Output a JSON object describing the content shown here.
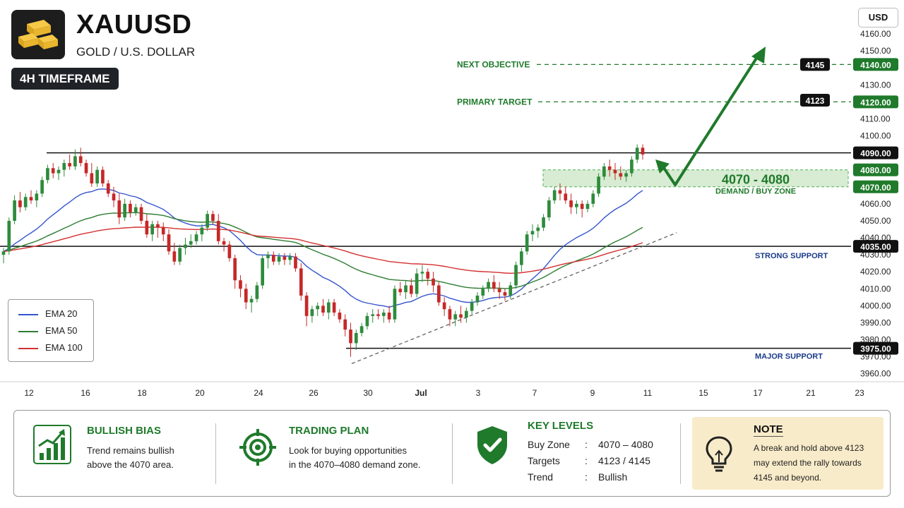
{
  "header": {
    "symbol": "XAUUSD",
    "subtitle": "GOLD / U.S. DOLLAR",
    "timeframe": "4H TIMEFRAME",
    "currency_button": "USD"
  },
  "colors": {
    "bull_candle": "#2e8b3c",
    "bear_candle": "#c62828",
    "ema20": "#3355cc",
    "ema50": "#2e7d32",
    "ema100": "#d32f2f",
    "accent_green": "#1f7a2b",
    "dark_label": "#111111"
  },
  "legend": [
    {
      "label": "EMA 20",
      "color": "#3355cc"
    },
    {
      "label": "EMA 50",
      "color": "#2e7d32"
    },
    {
      "label": "EMA 100",
      "color": "#d32f2f"
    }
  ],
  "chart_data": {
    "type": "candlestick",
    "ylim": [
      3955,
      4165
    ],
    "y_ticks": [
      "4160.00",
      "4150.00",
      "4140.00",
      "4130.00",
      "4120.00",
      "4110.00",
      "4100.00",
      "4090.00",
      "4080.00",
      "4070.00",
      "4060.00",
      "4050.00",
      "4040.00",
      "4035.00",
      "4030.00",
      "4020.00",
      "4010.00",
      "4000.00",
      "3990.00",
      "3980.00",
      "3975.00",
      "3970.00",
      "3960.00"
    ],
    "x_ticks": [
      "12",
      "16",
      "18",
      "20",
      "24",
      "26",
      "30",
      "Jul",
      "3",
      "7",
      "9",
      "11",
      "15",
      "17",
      "21",
      "23"
    ],
    "candles": [
      {
        "o": 4030,
        "h": 4034,
        "l": 4025,
        "c": 4032
      },
      {
        "o": 4032,
        "h": 4052,
        "l": 4030,
        "c": 4050
      },
      {
        "o": 4050,
        "h": 4065,
        "l": 4048,
        "c": 4062
      },
      {
        "o": 4062,
        "h": 4067,
        "l": 4055,
        "c": 4058
      },
      {
        "o": 4058,
        "h": 4066,
        "l": 4056,
        "c": 4064
      },
      {
        "o": 4064,
        "h": 4068,
        "l": 4060,
        "c": 4062
      },
      {
        "o": 4062,
        "h": 4068,
        "l": 4058,
        "c": 4066
      },
      {
        "o": 4066,
        "h": 4076,
        "l": 4064,
        "c": 4074
      },
      {
        "o": 4074,
        "h": 4083,
        "l": 4072,
        "c": 4081
      },
      {
        "o": 4081,
        "h": 4084,
        "l": 4075,
        "c": 4078
      },
      {
        "o": 4078,
        "h": 4082,
        "l": 4074,
        "c": 4080
      },
      {
        "o": 4080,
        "h": 4086,
        "l": 4076,
        "c": 4084
      },
      {
        "o": 4084,
        "h": 4089,
        "l": 4080,
        "c": 4082
      },
      {
        "o": 4082,
        "h": 4092,
        "l": 4080,
        "c": 4088
      },
      {
        "o": 4088,
        "h": 4093,
        "l": 4082,
        "c": 4084
      },
      {
        "o": 4084,
        "h": 4086,
        "l": 4076,
        "c": 4078
      },
      {
        "o": 4078,
        "h": 4084,
        "l": 4070,
        "c": 4072
      },
      {
        "o": 4072,
        "h": 4082,
        "l": 4070,
        "c": 4080
      },
      {
        "o": 4080,
        "h": 4082,
        "l": 4070,
        "c": 4072
      },
      {
        "o": 4072,
        "h": 4074,
        "l": 4064,
        "c": 4066
      },
      {
        "o": 4066,
        "h": 4070,
        "l": 4058,
        "c": 4062
      },
      {
        "o": 4062,
        "h": 4066,
        "l": 4048,
        "c": 4052
      },
      {
        "o": 4052,
        "h": 4063,
        "l": 4050,
        "c": 4060
      },
      {
        "o": 4060,
        "h": 4062,
        "l": 4052,
        "c": 4055
      },
      {
        "o": 4055,
        "h": 4060,
        "l": 4053,
        "c": 4058
      },
      {
        "o": 4058,
        "h": 4060,
        "l": 4048,
        "c": 4050
      },
      {
        "o": 4050,
        "h": 4054,
        "l": 4040,
        "c": 4042
      },
      {
        "o": 4042,
        "h": 4050,
        "l": 4038,
        "c": 4048
      },
      {
        "o": 4048,
        "h": 4050,
        "l": 4040,
        "c": 4046
      },
      {
        "o": 4046,
        "h": 4049,
        "l": 4038,
        "c": 4042
      },
      {
        "o": 4042,
        "h": 4045,
        "l": 4030,
        "c": 4032
      },
      {
        "o": 4032,
        "h": 4037,
        "l": 4024,
        "c": 4026
      },
      {
        "o": 4026,
        "h": 4036,
        "l": 4024,
        "c": 4034
      },
      {
        "o": 4034,
        "h": 4040,
        "l": 4030,
        "c": 4036
      },
      {
        "o": 4036,
        "h": 4042,
        "l": 4034,
        "c": 4038
      },
      {
        "o": 4038,
        "h": 4044,
        "l": 4036,
        "c": 4042
      },
      {
        "o": 4042,
        "h": 4048,
        "l": 4038,
        "c": 4046
      },
      {
        "o": 4046,
        "h": 4056,
        "l": 4044,
        "c": 4054
      },
      {
        "o": 4054,
        "h": 4056,
        "l": 4048,
        "c": 4050
      },
      {
        "o": 4050,
        "h": 4054,
        "l": 4036,
        "c": 4038
      },
      {
        "o": 4038,
        "h": 4040,
        "l": 4032,
        "c": 4036
      },
      {
        "o": 4036,
        "h": 4038,
        "l": 4026,
        "c": 4028
      },
      {
        "o": 4028,
        "h": 4030,
        "l": 4010,
        "c": 4015
      },
      {
        "o": 4015,
        "h": 4018,
        "l": 4005,
        "c": 4010
      },
      {
        "o": 4010,
        "h": 4013,
        "l": 3998,
        "c": 4002
      },
      {
        "o": 4002,
        "h": 4006,
        "l": 3996,
        "c": 4004
      },
      {
        "o": 4004,
        "h": 4014,
        "l": 4002,
        "c": 4012
      },
      {
        "o": 4012,
        "h": 4030,
        "l": 4010,
        "c": 4028
      },
      {
        "o": 4028,
        "h": 4032,
        "l": 4022,
        "c": 4030
      },
      {
        "o": 4030,
        "h": 4032,
        "l": 4024,
        "c": 4026
      },
      {
        "o": 4026,
        "h": 4031,
        "l": 4024,
        "c": 4029
      },
      {
        "o": 4029,
        "h": 4031,
        "l": 4024,
        "c": 4027
      },
      {
        "o": 4027,
        "h": 4031,
        "l": 4024,
        "c": 4029
      },
      {
        "o": 4029,
        "h": 4031,
        "l": 4020,
        "c": 4022
      },
      {
        "o": 4022,
        "h": 4025,
        "l": 4003,
        "c": 4006
      },
      {
        "o": 4006,
        "h": 4008,
        "l": 3988,
        "c": 3994
      },
      {
        "o": 3994,
        "h": 4000,
        "l": 3990,
        "c": 3998
      },
      {
        "o": 3998,
        "h": 4002,
        "l": 3994,
        "c": 4000
      },
      {
        "o": 4000,
        "h": 4004,
        "l": 3994,
        "c": 3996
      },
      {
        "o": 3996,
        "h": 4004,
        "l": 3992,
        "c": 4002
      },
      {
        "o": 4002,
        "h": 4004,
        "l": 3994,
        "c": 3996
      },
      {
        "o": 3996,
        "h": 3998,
        "l": 3990,
        "c": 3992
      },
      {
        "o": 3992,
        "h": 3995,
        "l": 3982,
        "c": 3986
      },
      {
        "o": 3986,
        "h": 3990,
        "l": 3970,
        "c": 3978
      },
      {
        "o": 3978,
        "h": 3986,
        "l": 3974,
        "c": 3984
      },
      {
        "o": 3984,
        "h": 3990,
        "l": 3982,
        "c": 3988
      },
      {
        "o": 3988,
        "h": 3996,
        "l": 3986,
        "c": 3994
      },
      {
        "o": 3994,
        "h": 3998,
        "l": 3990,
        "c": 3995
      },
      {
        "o": 3995,
        "h": 3998,
        "l": 3992,
        "c": 3994
      },
      {
        "o": 3994,
        "h": 3998,
        "l": 3990,
        "c": 3996
      },
      {
        "o": 3996,
        "h": 4000,
        "l": 3990,
        "c": 3992
      },
      {
        "o": 3992,
        "h": 4012,
        "l": 3990,
        "c": 4010
      },
      {
        "o": 4010,
        "h": 4014,
        "l": 4006,
        "c": 4008
      },
      {
        "o": 4008,
        "h": 4015,
        "l": 4004,
        "c": 4012
      },
      {
        "o": 4012,
        "h": 4016,
        "l": 4005,
        "c": 4007
      },
      {
        "o": 4007,
        "h": 4022,
        "l": 4005,
        "c": 4019
      },
      {
        "o": 4019,
        "h": 4024,
        "l": 4014,
        "c": 4020
      },
      {
        "o": 4020,
        "h": 4022,
        "l": 4012,
        "c": 4016
      },
      {
        "o": 4016,
        "h": 4020,
        "l": 4008,
        "c": 4012
      },
      {
        "o": 4012,
        "h": 4014,
        "l": 4000,
        "c": 4002
      },
      {
        "o": 4002,
        "h": 4005,
        "l": 3994,
        "c": 3998
      },
      {
        "o": 3998,
        "h": 4000,
        "l": 3988,
        "c": 3992
      },
      {
        "o": 3992,
        "h": 3997,
        "l": 3988,
        "c": 3995
      },
      {
        "o": 3995,
        "h": 4000,
        "l": 3990,
        "c": 3993
      },
      {
        "o": 3993,
        "h": 3999,
        "l": 3990,
        "c": 3997
      },
      {
        "o": 3997,
        "h": 4004,
        "l": 3995,
        "c": 4002
      },
      {
        "o": 4002,
        "h": 4008,
        "l": 4000,
        "c": 4006
      },
      {
        "o": 4006,
        "h": 4012,
        "l": 4004,
        "c": 4010
      },
      {
        "o": 4010,
        "h": 4016,
        "l": 4008,
        "c": 4014
      },
      {
        "o": 4014,
        "h": 4018,
        "l": 4008,
        "c": 4010
      },
      {
        "o": 4010,
        "h": 4014,
        "l": 4004,
        "c": 4008
      },
      {
        "o": 4008,
        "h": 4010,
        "l": 4003,
        "c": 4006
      },
      {
        "o": 4006,
        "h": 4014,
        "l": 4004,
        "c": 4012
      },
      {
        "o": 4012,
        "h": 4026,
        "l": 4010,
        "c": 4024
      },
      {
        "o": 4024,
        "h": 4034,
        "l": 4020,
        "c": 4032
      },
      {
        "o": 4032,
        "h": 4044,
        "l": 4030,
        "c": 4042
      },
      {
        "o": 4042,
        "h": 4048,
        "l": 4038,
        "c": 4044
      },
      {
        "o": 4044,
        "h": 4048,
        "l": 4040,
        "c": 4046
      },
      {
        "o": 4046,
        "h": 4054,
        "l": 4044,
        "c": 4052
      },
      {
        "o": 4052,
        "h": 4064,
        "l": 4050,
        "c": 4062
      },
      {
        "o": 4062,
        "h": 4070,
        "l": 4060,
        "c": 4068
      },
      {
        "o": 4068,
        "h": 4072,
        "l": 4062,
        "c": 4066
      },
      {
        "o": 4066,
        "h": 4070,
        "l": 4060,
        "c": 4062
      },
      {
        "o": 4062,
        "h": 4066,
        "l": 4054,
        "c": 4058
      },
      {
        "o": 4058,
        "h": 4062,
        "l": 4054,
        "c": 4060
      },
      {
        "o": 4060,
        "h": 4062,
        "l": 4052,
        "c": 4057
      },
      {
        "o": 4057,
        "h": 4062,
        "l": 4055,
        "c": 4060
      },
      {
        "o": 4060,
        "h": 4068,
        "l": 4058,
        "c": 4066
      },
      {
        "o": 4066,
        "h": 4078,
        "l": 4064,
        "c": 4076
      },
      {
        "o": 4076,
        "h": 4084,
        "l": 4074,
        "c": 4082
      },
      {
        "o": 4082,
        "h": 4086,
        "l": 4076,
        "c": 4080
      },
      {
        "o": 4080,
        "h": 4084,
        "l": 4074,
        "c": 4078
      },
      {
        "o": 4078,
        "h": 4082,
        "l": 4074,
        "c": 4076
      },
      {
        "o": 4076,
        "h": 4080,
        "l": 4073,
        "c": 4078
      },
      {
        "o": 4078,
        "h": 4088,
        "l": 4076,
        "c": 4086
      },
      {
        "o": 4086,
        "h": 4095,
        "l": 4084,
        "c": 4093
      },
      {
        "o": 4093,
        "h": 4095,
        "l": 4086,
        "c": 4089
      }
    ]
  },
  "levels": {
    "next_objective": {
      "label": "NEXT OBJECTIVE",
      "value_box": "4145",
      "axis": "4140.00"
    },
    "primary_target": {
      "label": "PRIMARY TARGET",
      "value_box": "4123",
      "axis": "4120.00"
    },
    "resistance": {
      "axis": "4090.00"
    },
    "zone": {
      "title": "4070 - 4080",
      "subtitle": "DEMAND / BUY ZONE",
      "axis_top": "4080.00",
      "axis_bottom": "4070.00"
    },
    "strong_support": {
      "label": "STRONG SUPPORT",
      "axis": "4035.00"
    },
    "major_support": {
      "label": "MAJOR SUPPORT",
      "axis": "3975.00"
    }
  },
  "panel": {
    "bias": {
      "title": "BULLISH BIAS",
      "line1": "Trend remains bullish",
      "line2": "above the 4070 area."
    },
    "plan": {
      "title": "TRADING PLAN",
      "line1": "Look for buying opportunities",
      "line2": "in the 4070–4080 demand zone."
    },
    "key_levels": {
      "title": "KEY LEVELS",
      "rows": [
        {
          "k": "Buy Zone",
          "sep": ":",
          "v": "4070 – 4080"
        },
        {
          "k": "Targets",
          "sep": ":",
          "v": "4123 / 4145"
        },
        {
          "k": "Trend",
          "sep": ":",
          "v": "Bullish"
        }
      ]
    },
    "note": {
      "title": "NOTE",
      "line1": "A break and hold above 4123",
      "line2": "may extend the rally towards",
      "line3": "4145 and beyond."
    }
  }
}
